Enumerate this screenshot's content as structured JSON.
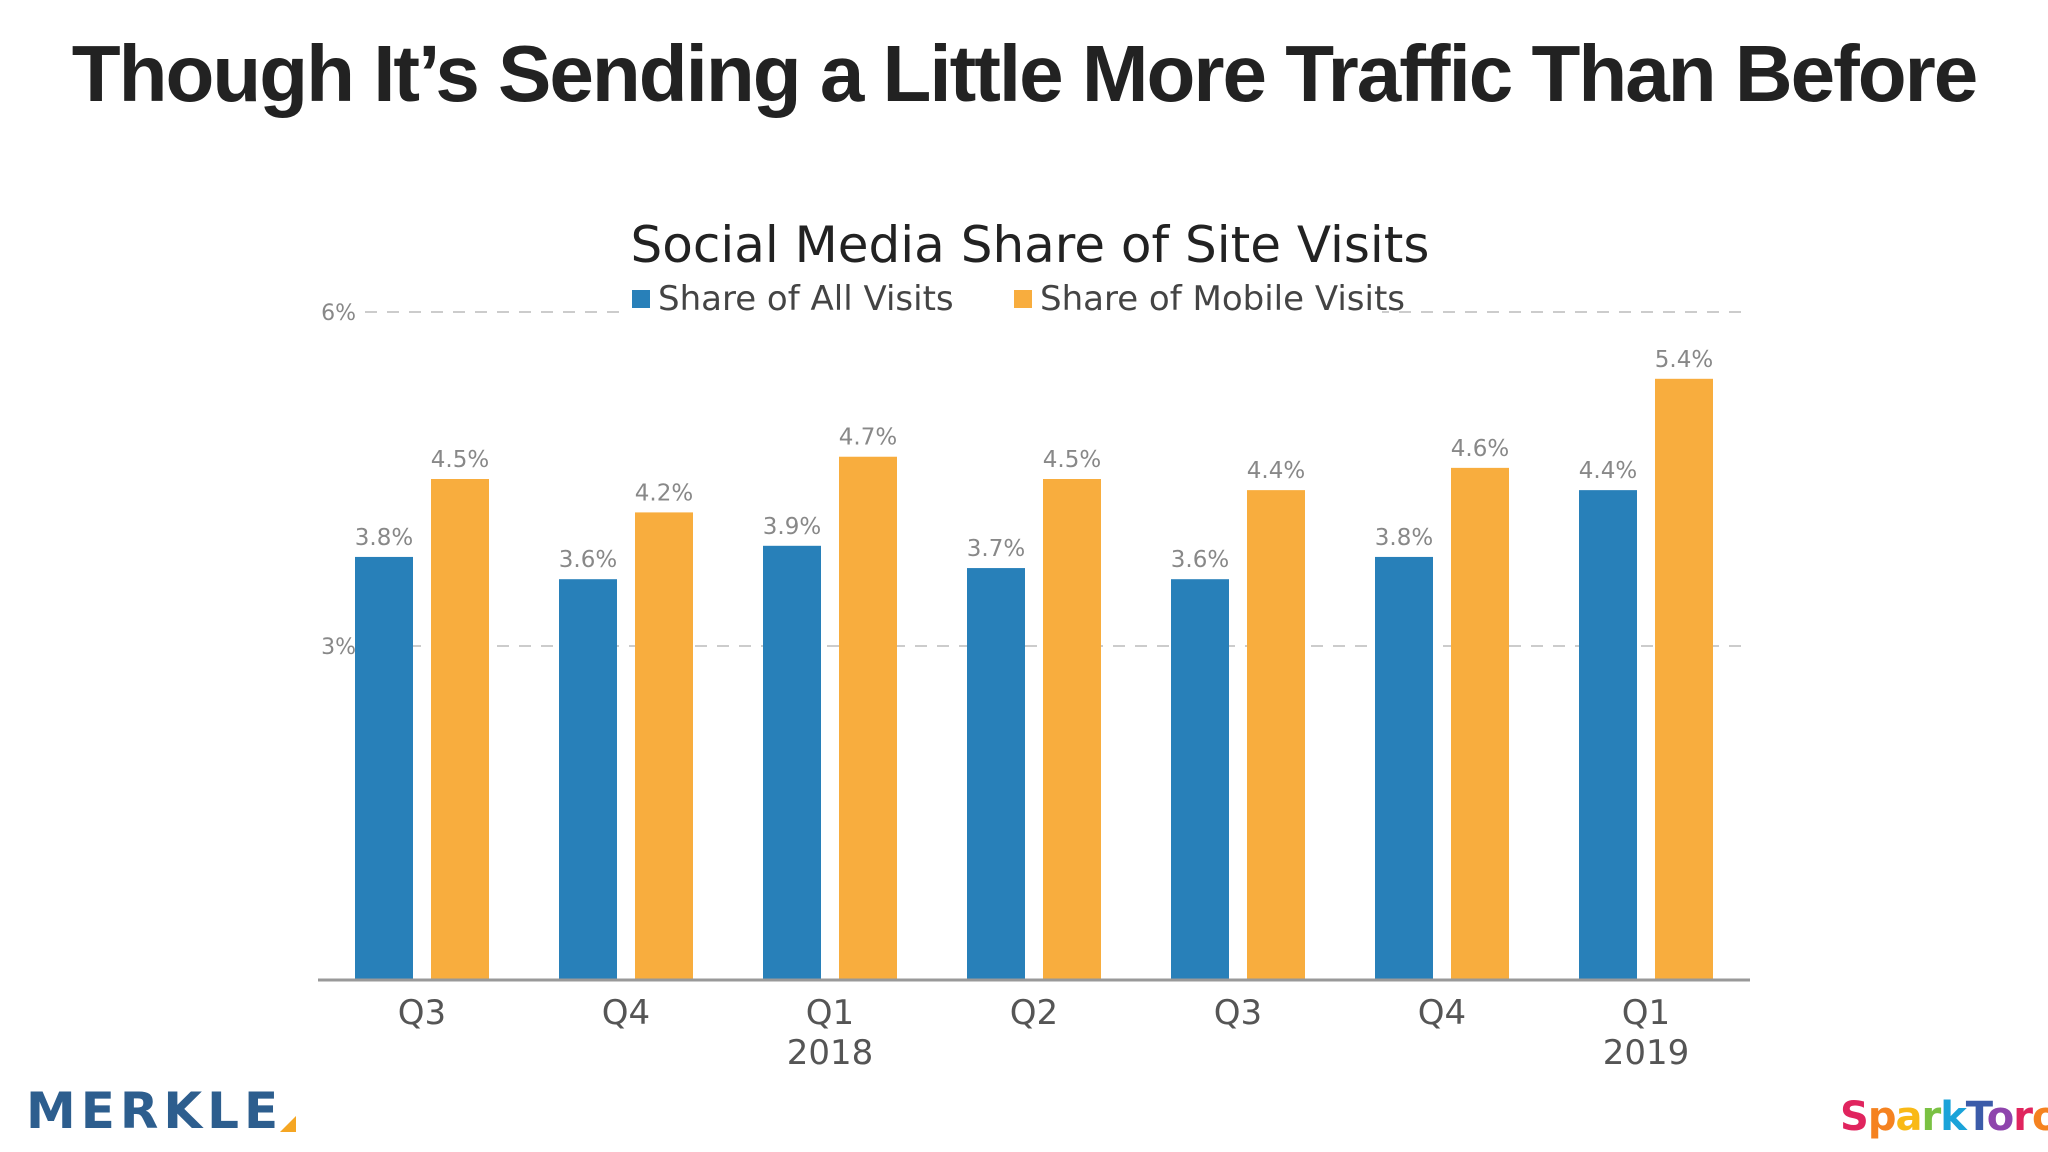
{
  "slide": {
    "title": "Though It’s Sending a Little More Traffic Than Before"
  },
  "logos": {
    "merkle": "MERKLE",
    "sparktoro": "SparkToro",
    "sparktoro_letter_colors": [
      "#e0245e",
      "#f58220",
      "#f9b916",
      "#7ac143",
      "#1aa3d9",
      "#3b5ba9",
      "#8e44ad",
      "#e0245e",
      "#f58220"
    ]
  },
  "colors": {
    "all_visits": "#2880b9",
    "mobile_visits": "#f8ad3e",
    "axis": "#999999",
    "grid": "#cccccc",
    "label": "#888888",
    "tick": "#555555"
  },
  "chart_data": {
    "type": "bar",
    "title": "Social Media Share of Site Visits",
    "categories": [
      "Q3",
      "Q4",
      "Q1",
      "Q2",
      "Q3",
      "Q4",
      "Q1"
    ],
    "category_years": [
      "",
      "",
      "2018",
      "",
      "",
      "",
      "2019"
    ],
    "series": [
      {
        "name": "Share of All Visits",
        "values": [
          3.8,
          3.6,
          3.9,
          3.7,
          3.6,
          3.8,
          4.4
        ],
        "labels": [
          "3.8%",
          "3.6%",
          "3.9%",
          "3.7%",
          "3.6%",
          "3.8%",
          "4.4%"
        ]
      },
      {
        "name": "Share of Mobile Visits",
        "values": [
          4.5,
          4.2,
          4.7,
          4.5,
          4.4,
          4.6,
          5.4
        ],
        "labels": [
          "4.5%",
          "4.2%",
          "4.7%",
          "4.5%",
          "4.4%",
          "4.6%",
          "5.4%"
        ]
      }
    ],
    "yticks": [
      {
        "value": 3,
        "label": "3%"
      },
      {
        "value": 6,
        "label": "6%"
      }
    ],
    "ylim": [
      0,
      6
    ],
    "grid": "dashed",
    "legend_position": "top"
  }
}
